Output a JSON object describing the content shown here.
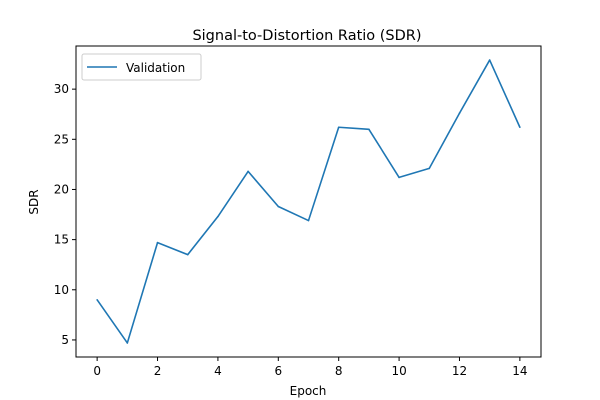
{
  "chart_data": {
    "type": "line",
    "title": "Signal-to-Distortion Ratio (SDR)",
    "xlabel": "Epoch",
    "ylabel": "SDR",
    "x": [
      0,
      1,
      2,
      3,
      4,
      5,
      6,
      7,
      8,
      9,
      10,
      11,
      12,
      13,
      14
    ],
    "series": [
      {
        "name": "Validation",
        "color": "#1f77b4",
        "values": [
          9.0,
          4.7,
          14.7,
          13.5,
          17.3,
          21.8,
          18.3,
          16.9,
          26.2,
          26.0,
          21.2,
          22.1,
          27.6,
          32.9,
          26.2
        ]
      }
    ],
    "xticks": [
      0,
      2,
      4,
      6,
      8,
      10,
      12,
      14
    ],
    "yticks": [
      5,
      10,
      15,
      20,
      25,
      30
    ],
    "xlim": [
      -0.7,
      14.7
    ],
    "ylim": [
      3.3,
      34.3
    ],
    "grid": false,
    "legend_position": "upper-left"
  }
}
